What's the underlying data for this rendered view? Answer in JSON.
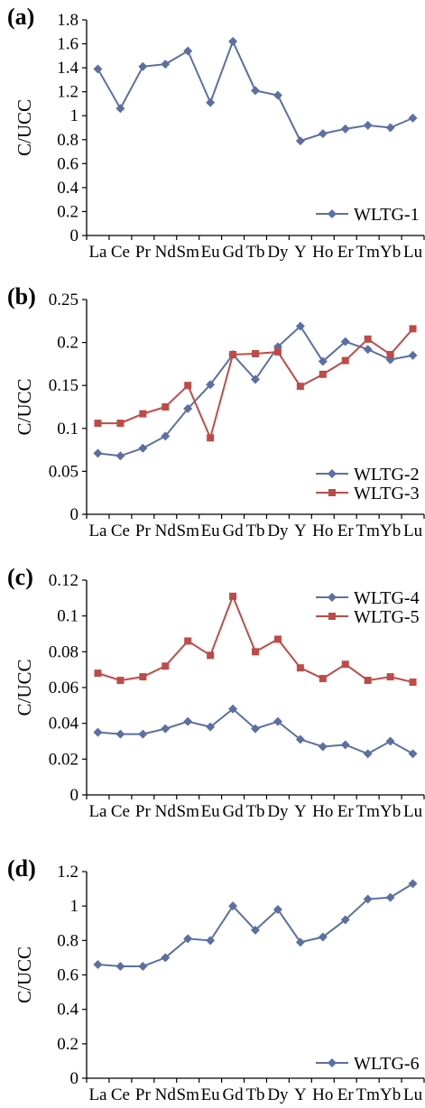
{
  "colors": {
    "blue": "#5b6fa3",
    "red": "#be4b48",
    "axis": "#000000"
  },
  "chart_data": [
    {
      "type": "line",
      "panel_label": "(a)",
      "ylabel": "C/UCC",
      "ylim": [
        0,
        1.8
      ],
      "yticks": [
        "0",
        "0.2",
        "0.4",
        "0.6",
        "0.8",
        "1",
        "1.2",
        "1.4",
        "1.6",
        "1.8"
      ],
      "categories": [
        "La",
        "Ce",
        "Pr",
        "Nd",
        "Sm",
        "Eu",
        "Gd",
        "Tb",
        "Dy",
        "Y",
        "Ho",
        "Er",
        "Tm",
        "Yb",
        "Lu"
      ],
      "series": [
        {
          "name": "WLTG-1",
          "marker": "diamond",
          "color": "#5b6fa3",
          "values": [
            1.39,
            1.06,
            1.41,
            1.43,
            1.54,
            1.11,
            1.62,
            1.21,
            1.17,
            0.79,
            0.85,
            0.89,
            0.92,
            0.9,
            0.98
          ]
        }
      ],
      "legend_position": "bottom-right"
    },
    {
      "type": "line",
      "panel_label": "(b)",
      "ylabel": "C/UCC",
      "ylim": [
        0,
        0.25
      ],
      "yticks": [
        "0",
        "0.05",
        "0.1",
        "0.15",
        "0.2",
        "0.25"
      ],
      "categories": [
        "La",
        "Ce",
        "Pr",
        "Nd",
        "Sm",
        "Eu",
        "Gd",
        "Tb",
        "Dy",
        "Y",
        "Ho",
        "Er",
        "Tm",
        "Yb",
        "Lu"
      ],
      "series": [
        {
          "name": "WLTG-2",
          "marker": "diamond",
          "color": "#5b6fa3",
          "values": [
            0.071,
            0.068,
            0.077,
            0.091,
            0.123,
            0.151,
            0.186,
            0.157,
            0.195,
            0.219,
            0.178,
            0.201,
            0.192,
            0.18,
            0.185
          ]
        },
        {
          "name": "WLTG-3",
          "marker": "square",
          "color": "#be4b48",
          "values": [
            0.106,
            0.106,
            0.117,
            0.125,
            0.15,
            0.089,
            0.186,
            0.187,
            0.189,
            0.149,
            0.163,
            0.179,
            0.204,
            0.186,
            0.216
          ]
        }
      ],
      "legend_position": "bottom-right"
    },
    {
      "type": "line",
      "panel_label": "(c)",
      "ylabel": "C/UCC",
      "ylim": [
        0,
        0.12
      ],
      "yticks": [
        "0",
        "0.02",
        "0.04",
        "0.06",
        "0.08",
        "0.1",
        "0.12"
      ],
      "categories": [
        "La",
        "Ce",
        "Pr",
        "Nd",
        "Sm",
        "Eu",
        "Gd",
        "Tb",
        "Dy",
        "Y",
        "Ho",
        "Er",
        "Tm",
        "Yb",
        "Lu"
      ],
      "series": [
        {
          "name": "WLTG-4",
          "marker": "diamond",
          "color": "#5b6fa3",
          "values": [
            0.035,
            0.034,
            0.034,
            0.037,
            0.041,
            0.038,
            0.048,
            0.037,
            0.041,
            0.031,
            0.027,
            0.028,
            0.023,
            0.03,
            0.023
          ]
        },
        {
          "name": "WLTG-5",
          "marker": "square",
          "color": "#be4b48",
          "values": [
            0.068,
            0.064,
            0.066,
            0.072,
            0.086,
            0.078,
            0.111,
            0.08,
            0.087,
            0.071,
            0.065,
            0.073,
            0.064,
            0.066,
            0.063
          ]
        }
      ],
      "legend_position": "top-right"
    },
    {
      "type": "line",
      "panel_label": "(d)",
      "ylabel": "C/UCC",
      "ylim": [
        0,
        1.2
      ],
      "yticks": [
        "0",
        "0.2",
        "0.4",
        "0.6",
        "0.8",
        "1",
        "1.2"
      ],
      "categories": [
        "La",
        "Ce",
        "Pr",
        "Nd",
        "Sm",
        "Eu",
        "Gd",
        "Tb",
        "Dy",
        "Y",
        "Ho",
        "Er",
        "Tm",
        "Yb",
        "Lu"
      ],
      "series": [
        {
          "name": "WLTG-6",
          "marker": "diamond",
          "color": "#5b6fa3",
          "values": [
            0.66,
            0.65,
            0.65,
            0.7,
            0.81,
            0.8,
            1.0,
            0.86,
            0.98,
            0.79,
            0.82,
            0.92,
            1.04,
            1.05,
            1.13
          ]
        }
      ],
      "legend_position": "bottom-right"
    }
  ]
}
